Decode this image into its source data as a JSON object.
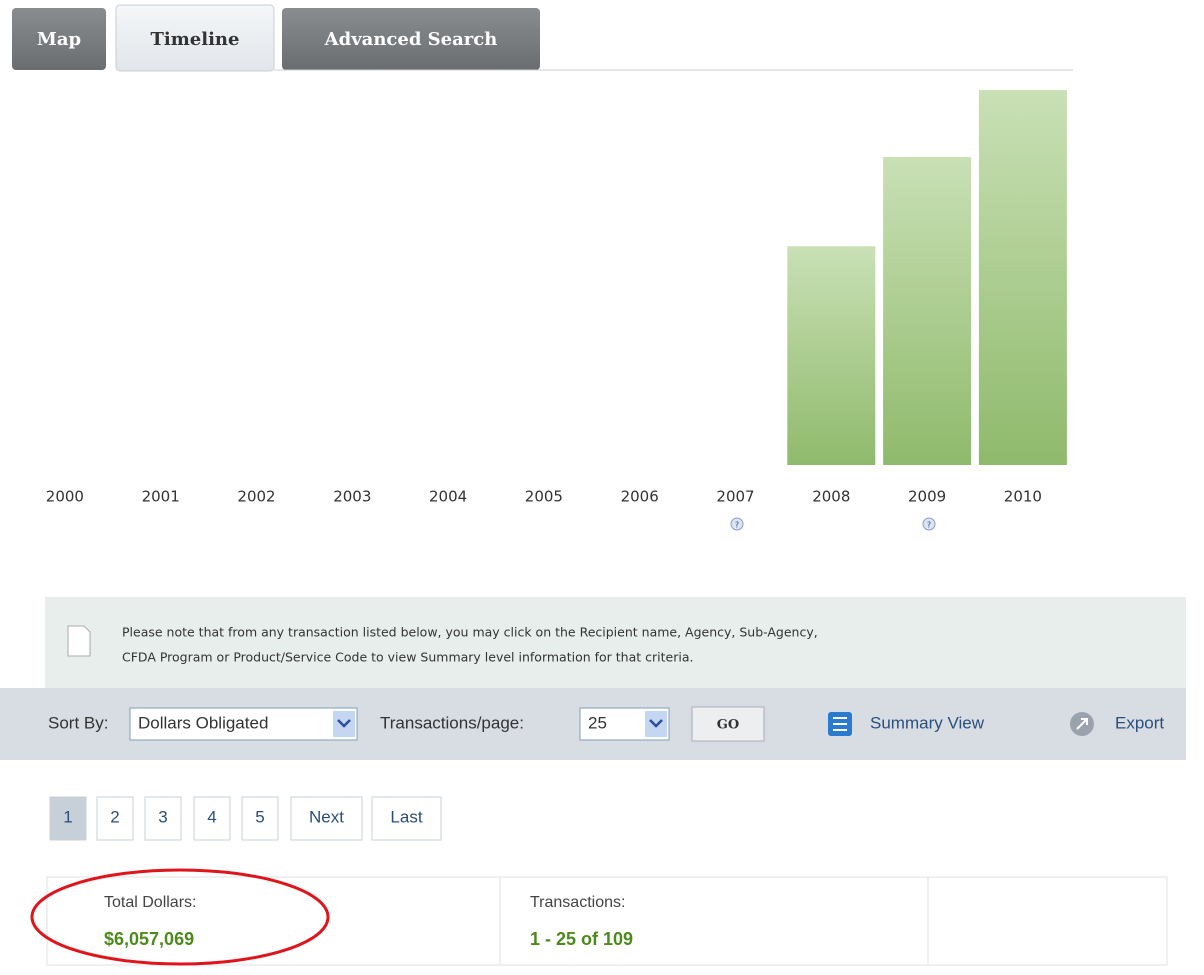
{
  "tabs": [
    "Map",
    "Timeline",
    "Advanced Search"
  ],
  "chart_data": {
    "type": "bar",
    "categories": [
      "2000",
      "2001",
      "2002",
      "2003",
      "2004",
      "2005",
      "2006",
      "2007",
      "2008",
      "2009",
      "2010"
    ],
    "values": [
      0,
      0,
      0,
      0,
      0,
      0,
      0,
      0,
      1470000,
      2070000,
      2520000
    ],
    "color": "#9cc47f",
    "ylim": [
      0,
      2641000
    ]
  },
  "note": [
    "Please note that from any transaction listed below, you may click on the Recipient name, Agency, Sub-Agency,",
    "CFDA Program or Product/Service Code to view Summary level information for that criteria."
  ],
  "toolbar": {
    "sort_label": "Sort By:",
    "sort_value": "Dollars Obligated",
    "per_page_label": "Transactions/page:",
    "per_page_value": "25",
    "go": "GO",
    "summary": "Summary View",
    "export": "Export"
  },
  "pagination": [
    "1",
    "2",
    "3",
    "4",
    "5",
    "Next",
    "Last"
  ],
  "totals": {
    "dollars_label": "Total Dollars:",
    "dollars": "$6,057,069",
    "transactions_label": "Transactions:",
    "transactions": "1 - 25 of 109"
  }
}
